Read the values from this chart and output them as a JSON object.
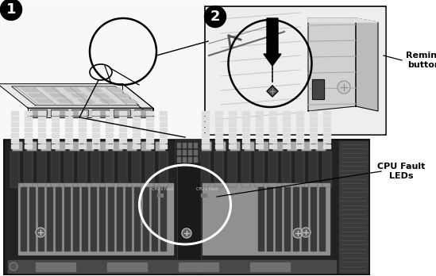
{
  "bg_color": "#ffffff",
  "panel1_label": "1",
  "panel2_label": "2",
  "remind_button_text": "Remind\nbutton",
  "cpu_fault_text": "CPU Fault\nLEDs",
  "board_dark": "#1e1e1e",
  "board_mid": "#2d2d2d",
  "board_med": "#555555",
  "board_light": "#888888",
  "cpu_color": "#808080",
  "cpu_dark": "#3c3c3c",
  "dimm_white": "#ffffff",
  "panel2_bg": "#f0f0f0",
  "ellipse_bottom_color": "#ffffff",
  "top_panel_bg": "#f8f8f8"
}
